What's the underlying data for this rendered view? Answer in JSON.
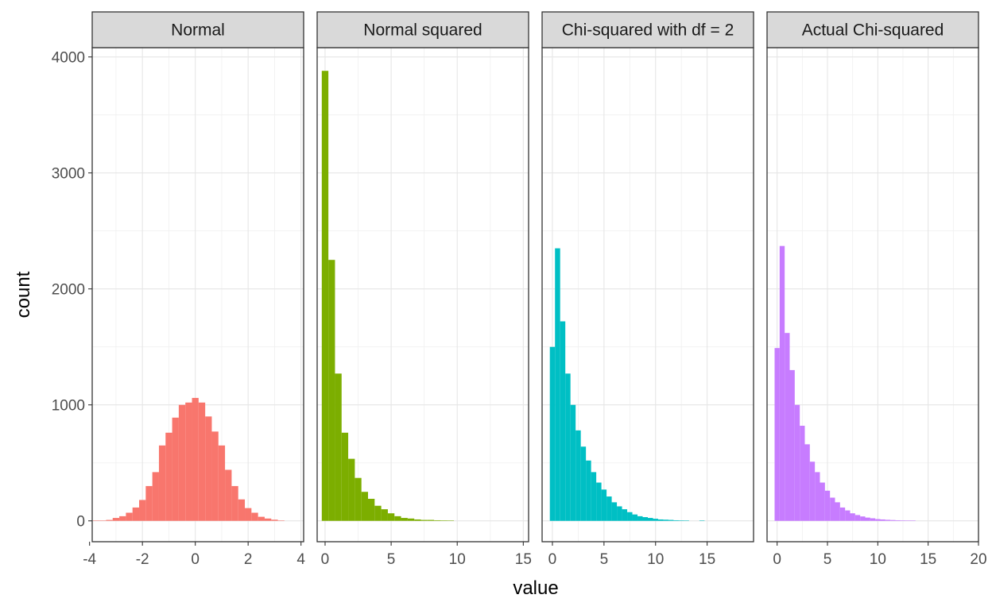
{
  "chart_data": {
    "type": "bar",
    "subtype": "faceted-histogram",
    "xlabel": "value",
    "ylabel": "count",
    "ylim": [
      -180,
      4080
    ],
    "y_ticks": [
      0,
      1000,
      2000,
      3000,
      4000
    ],
    "y_tick_labels": [
      "0",
      "1000",
      "2000",
      "3000",
      "4000"
    ],
    "grid": true,
    "legend": "none",
    "panels": [
      {
        "name": "Normal",
        "color": "#F8766D",
        "xlim": [
          -3.9,
          4.1
        ],
        "x_ticks": [
          -4,
          -2,
          0,
          2,
          4
        ],
        "x_tick_labels": [
          "-4",
          "-2",
          "0",
          "2",
          "4"
        ],
        "bin_width": 0.25,
        "bins": [
          {
            "x": -3.75,
            "count": 3
          },
          {
            "x": -3.5,
            "count": 2
          },
          {
            "x": -3.25,
            "count": 8
          },
          {
            "x": -3.0,
            "count": 25
          },
          {
            "x": -2.75,
            "count": 40
          },
          {
            "x": -2.5,
            "count": 70
          },
          {
            "x": -2.25,
            "count": 115
          },
          {
            "x": -2.0,
            "count": 180
          },
          {
            "x": -1.75,
            "count": 300
          },
          {
            "x": -1.5,
            "count": 420
          },
          {
            "x": -1.25,
            "count": 650
          },
          {
            "x": -1.0,
            "count": 760
          },
          {
            "x": -0.75,
            "count": 890
          },
          {
            "x": -0.5,
            "count": 1000
          },
          {
            "x": -0.25,
            "count": 1020
          },
          {
            "x": 0.0,
            "count": 1060
          },
          {
            "x": 0.25,
            "count": 1020
          },
          {
            "x": 0.5,
            "count": 900
          },
          {
            "x": 0.75,
            "count": 770
          },
          {
            "x": 1.0,
            "count": 650
          },
          {
            "x": 1.25,
            "count": 440
          },
          {
            "x": 1.5,
            "count": 300
          },
          {
            "x": 1.75,
            "count": 185
          },
          {
            "x": 2.0,
            "count": 110
          },
          {
            "x": 2.25,
            "count": 70
          },
          {
            "x": 2.5,
            "count": 35
          },
          {
            "x": 2.75,
            "count": 20
          },
          {
            "x": 3.0,
            "count": 10
          },
          {
            "x": 3.25,
            "count": 3
          }
        ]
      },
      {
        "name": "Normal squared",
        "color": "#7CAE00",
        "xlim": [
          -0.6,
          15.4
        ],
        "x_ticks": [
          0,
          5,
          10,
          15
        ],
        "x_tick_labels": [
          "0",
          "5",
          "10",
          "15"
        ],
        "bin_width": 0.5,
        "bins": [
          {
            "x": 0.0,
            "count": 3880
          },
          {
            "x": 0.5,
            "count": 2250
          },
          {
            "x": 1.0,
            "count": 1270
          },
          {
            "x": 1.5,
            "count": 760
          },
          {
            "x": 2.0,
            "count": 535
          },
          {
            "x": 2.5,
            "count": 370
          },
          {
            "x": 3.0,
            "count": 250
          },
          {
            "x": 3.5,
            "count": 190
          },
          {
            "x": 4.0,
            "count": 130
          },
          {
            "x": 4.5,
            "count": 100
          },
          {
            "x": 5.0,
            "count": 65
          },
          {
            "x": 5.5,
            "count": 40
          },
          {
            "x": 6.0,
            "count": 25
          },
          {
            "x": 6.5,
            "count": 20
          },
          {
            "x": 7.0,
            "count": 12
          },
          {
            "x": 7.5,
            "count": 8
          },
          {
            "x": 8.0,
            "count": 8
          },
          {
            "x": 8.5,
            "count": 5
          },
          {
            "x": 9.0,
            "count": 4
          },
          {
            "x": 9.5,
            "count": 3
          }
        ]
      },
      {
        "name": "Chi-squared with df = 2",
        "color": "#00BFC4",
        "xlim": [
          -1.0,
          19.5
        ],
        "x_ticks": [
          0,
          5,
          10,
          15
        ],
        "x_tick_labels": [
          "0",
          "5",
          "10",
          "15"
        ],
        "bin_width": 0.5,
        "bins": [
          {
            "x": 0.0,
            "count": 1500
          },
          {
            "x": 0.5,
            "count": 2350
          },
          {
            "x": 1.0,
            "count": 1720
          },
          {
            "x": 1.5,
            "count": 1270
          },
          {
            "x": 2.0,
            "count": 1000
          },
          {
            "x": 2.5,
            "count": 780
          },
          {
            "x": 3.0,
            "count": 640
          },
          {
            "x": 3.5,
            "count": 520
          },
          {
            "x": 4.0,
            "count": 420
          },
          {
            "x": 4.5,
            "count": 330
          },
          {
            "x": 5.0,
            "count": 270
          },
          {
            "x": 5.5,
            "count": 210
          },
          {
            "x": 6.0,
            "count": 160
          },
          {
            "x": 6.5,
            "count": 125
          },
          {
            "x": 7.0,
            "count": 100
          },
          {
            "x": 7.5,
            "count": 75
          },
          {
            "x": 8.0,
            "count": 55
          },
          {
            "x": 8.5,
            "count": 40
          },
          {
            "x": 9.0,
            "count": 32
          },
          {
            "x": 9.5,
            "count": 25
          },
          {
            "x": 10.0,
            "count": 18
          },
          {
            "x": 10.5,
            "count": 12
          },
          {
            "x": 11.0,
            "count": 10
          },
          {
            "x": 11.5,
            "count": 8
          },
          {
            "x": 12.0,
            "count": 5
          },
          {
            "x": 12.5,
            "count": 4
          },
          {
            "x": 13.0,
            "count": 3
          },
          {
            "x": 14.5,
            "count": 3
          }
        ]
      },
      {
        "name": "Actual Chi-squared",
        "color": "#C77CFF",
        "xlim": [
          -1.0,
          20.0
        ],
        "x_ticks": [
          0,
          5,
          10,
          15,
          20
        ],
        "x_tick_labels": [
          "0",
          "5",
          "10",
          "15",
          "20"
        ],
        "bin_width": 0.5,
        "bins": [
          {
            "x": 0.0,
            "count": 1490
          },
          {
            "x": 0.5,
            "count": 2370
          },
          {
            "x": 1.0,
            "count": 1620
          },
          {
            "x": 1.5,
            "count": 1300
          },
          {
            "x": 2.0,
            "count": 1000
          },
          {
            "x": 2.5,
            "count": 820
          },
          {
            "x": 3.0,
            "count": 660
          },
          {
            "x": 3.5,
            "count": 510
          },
          {
            "x": 4.0,
            "count": 420
          },
          {
            "x": 4.5,
            "count": 330
          },
          {
            "x": 5.0,
            "count": 260
          },
          {
            "x": 5.5,
            "count": 200
          },
          {
            "x": 6.0,
            "count": 160
          },
          {
            "x": 6.5,
            "count": 115
          },
          {
            "x": 7.0,
            "count": 90
          },
          {
            "x": 7.5,
            "count": 65
          },
          {
            "x": 8.0,
            "count": 50
          },
          {
            "x": 8.5,
            "count": 38
          },
          {
            "x": 9.0,
            "count": 28
          },
          {
            "x": 9.5,
            "count": 22
          },
          {
            "x": 10.0,
            "count": 15
          },
          {
            "x": 10.5,
            "count": 12
          },
          {
            "x": 11.0,
            "count": 9
          },
          {
            "x": 11.5,
            "count": 7
          },
          {
            "x": 12.0,
            "count": 5
          },
          {
            "x": 12.5,
            "count": 4
          },
          {
            "x": 13.0,
            "count": 3
          },
          {
            "x": 13.5,
            "count": 2
          }
        ]
      }
    ]
  }
}
